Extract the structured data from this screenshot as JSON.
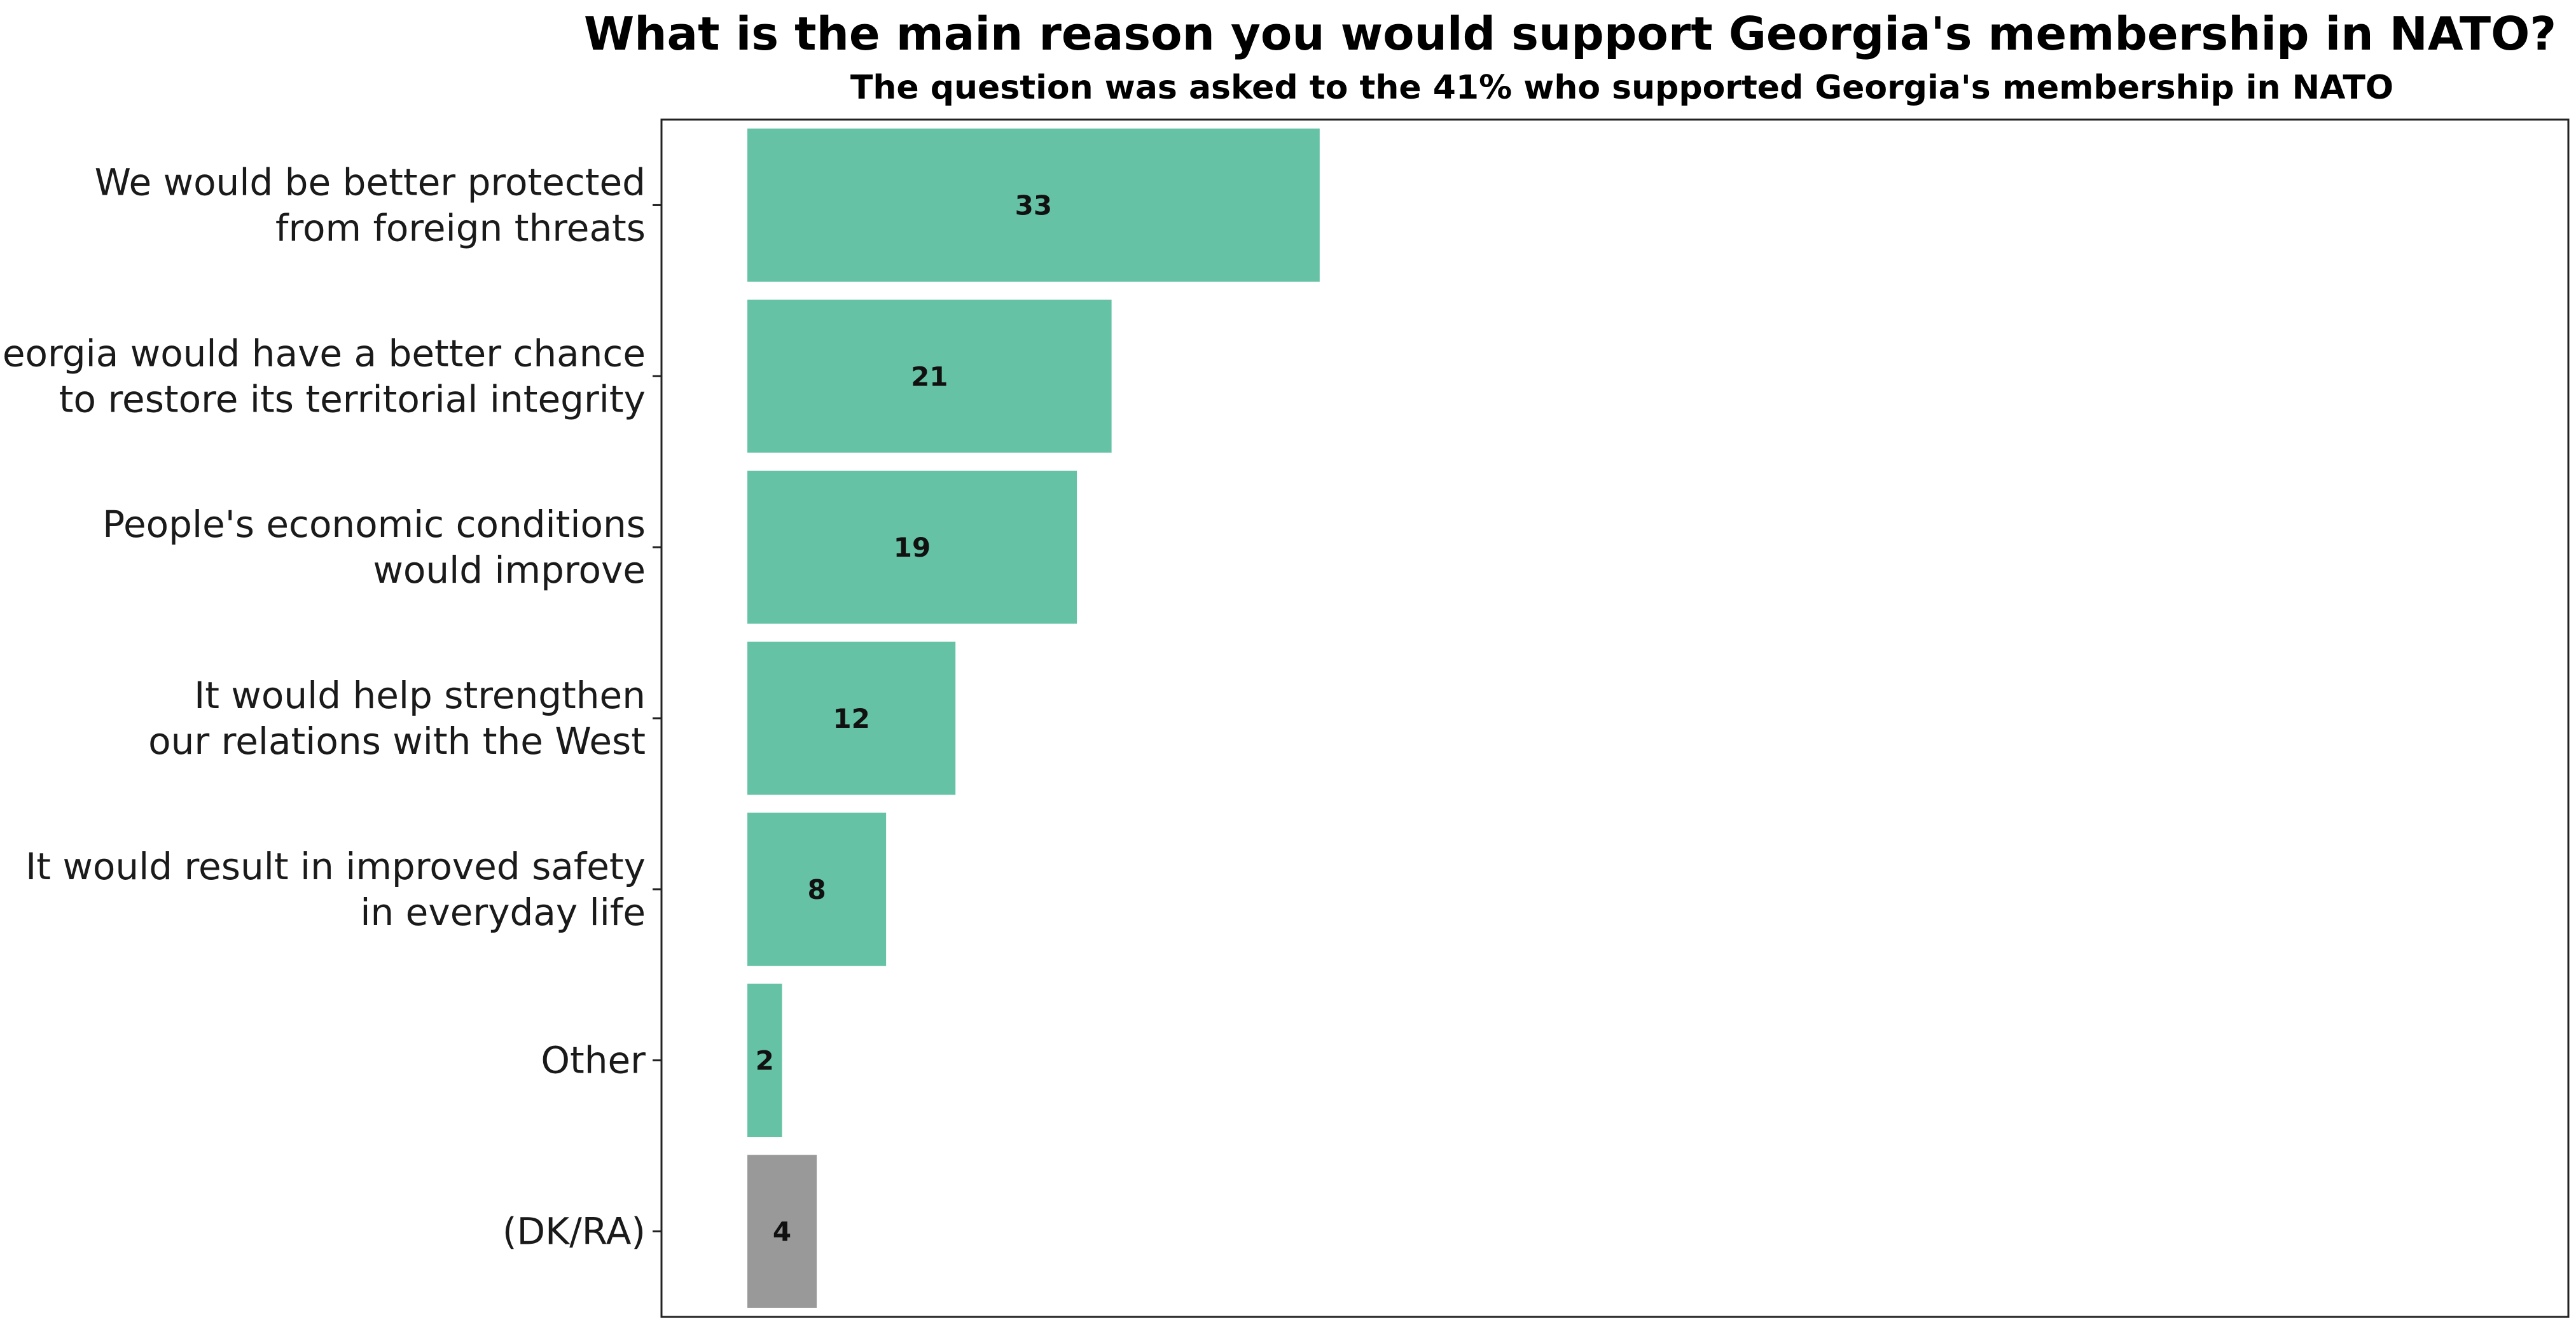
{
  "chart_data": {
    "type": "bar",
    "orientation": "horizontal",
    "title": "What is the main reason you would support Georgia's membership in NATO? (%)",
    "subtitle": "The question was asked to the 41% who supported Georgia's membership in NATO",
    "categories": [
      [
        "We would be better protected",
        "from foreign threats"
      ],
      [
        "Georgia would have a better chance",
        "to restore its territorial integrity"
      ],
      [
        "People's economic conditions",
        "would improve"
      ],
      [
        "It would help strengthen",
        "our relations with the West"
      ],
      [
        "It would result in improved safety",
        "in everyday life"
      ],
      [
        "Other"
      ],
      [
        "(DK/RA)"
      ]
    ],
    "values": [
      33,
      21,
      19,
      12,
      8,
      2,
      4
    ],
    "bar_colors": [
      "#66c2a5",
      "#66c2a5",
      "#66c2a5",
      "#66c2a5",
      "#66c2a5",
      "#66c2a5",
      "#999999"
    ],
    "xlim": [
      0,
      105
    ],
    "grid": false,
    "legend": "none"
  }
}
